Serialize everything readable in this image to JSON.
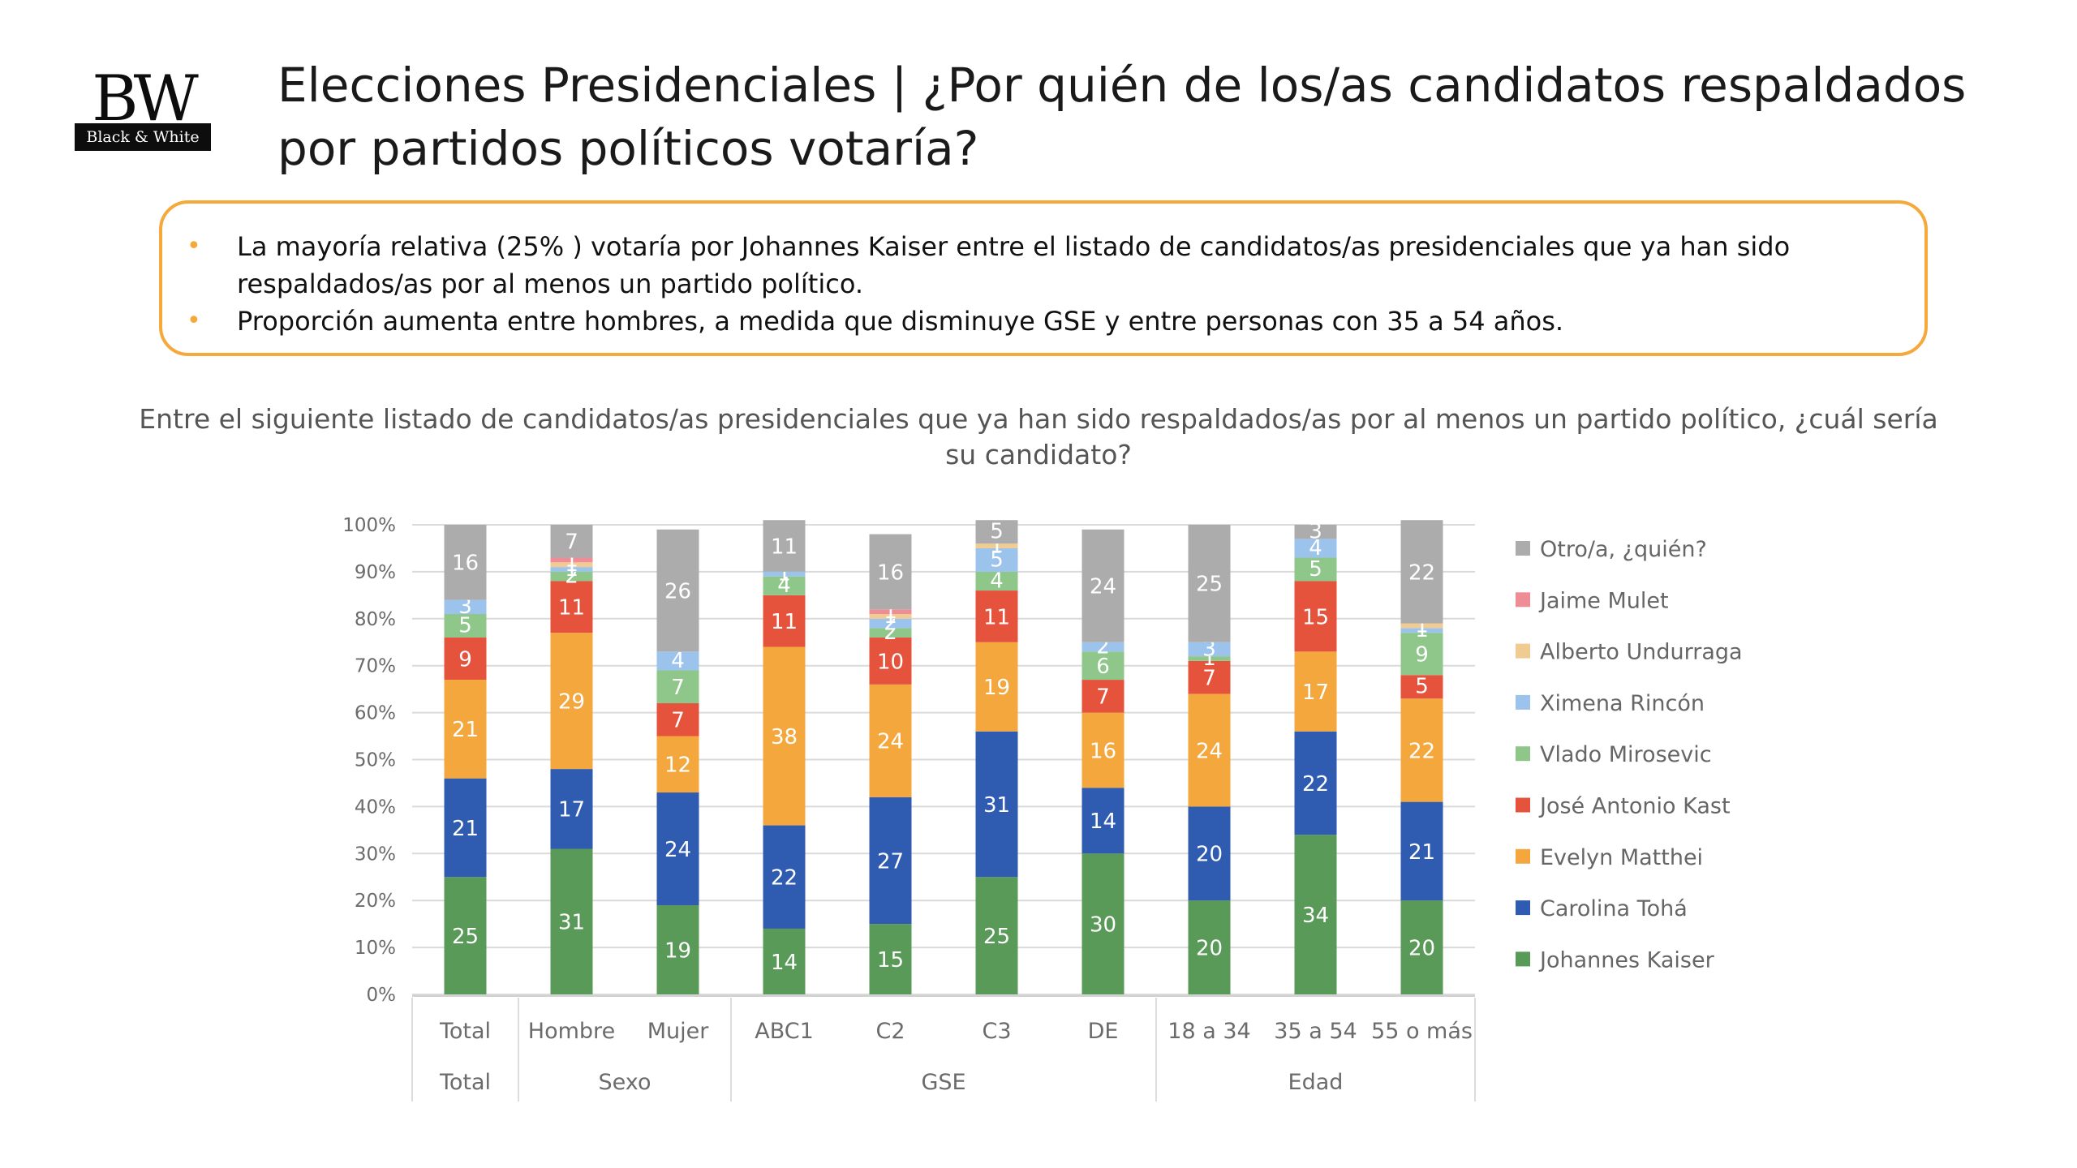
{
  "logo": {
    "letters": "BW",
    "band": "Black & White"
  },
  "title": "Elecciones Presidenciales | ¿Por quién de los/as candidatos respaldados por partidos políticos votaría?",
  "notes": [
    "La mayoría relativa (25% ) votaría por Johannes Kaiser entre el listado de candidatos/as presidenciales que ya han sido respaldados/as por al menos un partido político.",
    "Proporción aumenta entre hombres, a medida que disminuye GSE y entre personas con 35 a 54 años."
  ],
  "question": "Entre el siguiente listado de candidatos/as presidenciales que ya han sido respaldados/as por al menos un partido político, ¿cuál sería su candidato?",
  "chart_data": {
    "type": "bar",
    "stacked": true,
    "ylim": [
      0,
      100
    ],
    "yticks": [
      "0%",
      "10%",
      "20%",
      "30%",
      "40%",
      "50%",
      "60%",
      "70%",
      "80%",
      "90%",
      "100%"
    ],
    "grid": true,
    "legend_position": "right",
    "categories": [
      "Total",
      "Hombre",
      "Mujer",
      "ABC1",
      "C2",
      "C3",
      "DE",
      "18 a 34",
      "35 a 54",
      "55 o más"
    ],
    "groups": [
      {
        "label": "Total",
        "count": 1
      },
      {
        "label": "Sexo",
        "count": 2
      },
      {
        "label": "GSE",
        "count": 4
      },
      {
        "label": "Edad",
        "count": 3
      }
    ],
    "series": [
      {
        "name": "Johannes Kaiser",
        "color": "#5a9a58",
        "values": [
          25,
          31,
          19,
          14,
          15,
          25,
          30,
          20,
          34,
          20
        ]
      },
      {
        "name": "Carolina Tohá",
        "color": "#2f5bb0",
        "values": [
          21,
          17,
          24,
          22,
          27,
          31,
          14,
          20,
          22,
          21
        ]
      },
      {
        "name": "Evelyn Matthei",
        "color": "#f3a73c",
        "values": [
          21,
          29,
          12,
          38,
          24,
          19,
          16,
          24,
          17,
          22
        ]
      },
      {
        "name": "José Antonio Kast",
        "color": "#e5533d",
        "values": [
          9,
          11,
          7,
          11,
          10,
          11,
          7,
          7,
          15,
          5
        ]
      },
      {
        "name": "Vlado Mirosevic",
        "color": "#8fc78a",
        "values": [
          5,
          2,
          7,
          4,
          2,
          4,
          6,
          1,
          5,
          9
        ]
      },
      {
        "name": "Ximena Rincón",
        "color": "#9cc3ec",
        "values": [
          3,
          1,
          4,
          1,
          2,
          5,
          2,
          3,
          4,
          1
        ]
      },
      {
        "name": "Alberto Undurraga",
        "color": "#f0cb92",
        "values": [
          0,
          1,
          0,
          0,
          1,
          1,
          0,
          0,
          0,
          1
        ]
      },
      {
        "name": "Jaime Mulet",
        "color": "#ef8d97",
        "values": [
          0,
          1,
          0,
          0,
          1,
          0,
          0,
          0,
          0,
          0
        ]
      },
      {
        "name": "Otro/a, ¿quién?",
        "color": "#acacac",
        "values": [
          16,
          7,
          26,
          11,
          16,
          5,
          24,
          25,
          3,
          22
        ]
      }
    ],
    "legend_order": [
      "Otro/a, ¿quién?",
      "Jaime Mulet",
      "Alberto Undurraga",
      "Ximena Rincón",
      "Vlado Mirosevic",
      "José Antonio Kast",
      "Evelyn Matthei",
      "Carolina Tohá",
      "Johannes Kaiser"
    ]
  }
}
